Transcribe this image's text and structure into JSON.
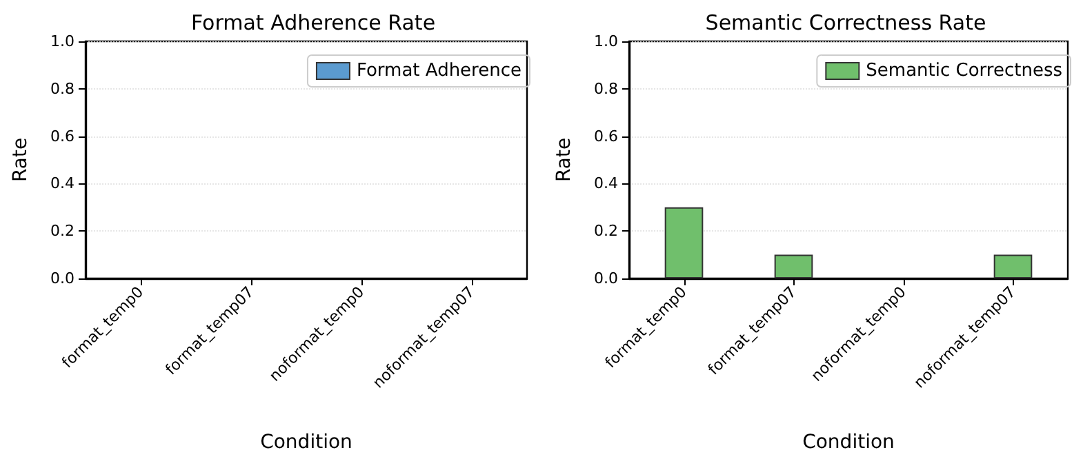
{
  "chart_data": [
    {
      "type": "bar",
      "title": "Format Adherence Rate",
      "xlabel": "Condition",
      "ylabel": "Rate",
      "categories": [
        "format_temp0",
        "format_temp07",
        "noformat_temp0",
        "noformat_temp07"
      ],
      "series": [
        {
          "name": "Format Adherence",
          "color": "#5b9bd0",
          "values": [
            0,
            0,
            0,
            0
          ]
        }
      ],
      "ylim": [
        0,
        1
      ],
      "yticks": [
        {
          "value": 0,
          "label": "0.0"
        },
        {
          "value": 0.2,
          "label": "0.2"
        },
        {
          "value": 0.4,
          "label": "0.4"
        },
        {
          "value": 0.6,
          "label": "0.6"
        },
        {
          "value": 0.8,
          "label": "0.8"
        },
        {
          "value": 1,
          "label": "1.0"
        }
      ],
      "grid": "y",
      "legend": "top right"
    },
    {
      "type": "bar",
      "title": "Semantic Correctness Rate",
      "xlabel": "Condition",
      "ylabel": "Rate",
      "categories": [
        "format_temp0",
        "format_temp07",
        "noformat_temp0",
        "noformat_temp07"
      ],
      "series": [
        {
          "name": "Semantic Correctness",
          "color": "#70bf6c",
          "values": [
            0.3,
            0.1,
            0,
            0.1
          ]
        }
      ],
      "ylim": [
        0,
        1
      ],
      "yticks": [
        {
          "value": 0,
          "label": "0.0"
        },
        {
          "value": 0.2,
          "label": "0.2"
        },
        {
          "value": 0.4,
          "label": "0.4"
        },
        {
          "value": 0.6,
          "label": "0.6"
        },
        {
          "value": 0.8,
          "label": "0.8"
        },
        {
          "value": 1,
          "label": "1.0"
        }
      ],
      "grid": "y",
      "legend": "top right"
    }
  ]
}
